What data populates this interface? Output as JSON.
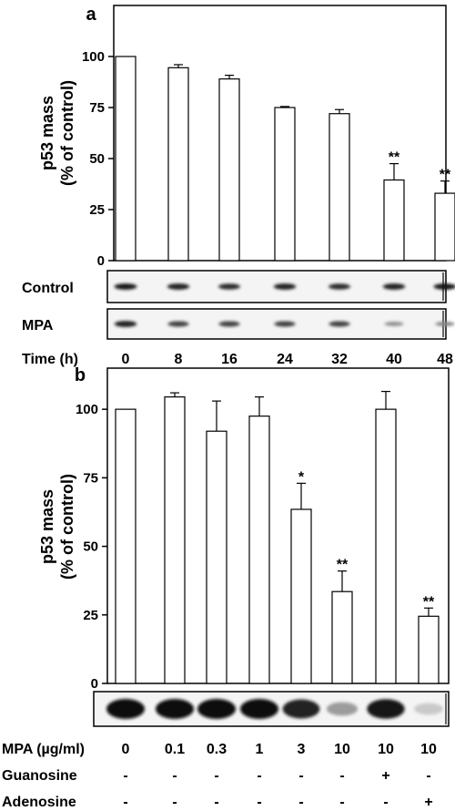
{
  "chart_data": [
    {
      "type": "bar",
      "panel_label": "a",
      "ylabel_line1": "p53 mass",
      "ylabel_line2": "(% of control)",
      "ylim": [
        0,
        125
      ],
      "yticks": [
        0,
        25,
        50,
        75,
        100
      ],
      "categories": [
        "0",
        "8",
        "16",
        "24",
        "32",
        "40",
        "48"
      ],
      "values": [
        100,
        94.5,
        89,
        75,
        72,
        39.5,
        33
      ],
      "errors": [
        0,
        1.5,
        1.8,
        0.5,
        2,
        8,
        6
      ],
      "significance": [
        "",
        "",
        "",
        "",
        "",
        "**",
        "**"
      ],
      "blot_rows": [
        {
          "label": "Control",
          "intensity": [
            0.95,
            0.9,
            0.85,
            0.9,
            0.85,
            0.9,
            0.95
          ]
        },
        {
          "label": "MPA",
          "intensity": [
            0.9,
            0.75,
            0.75,
            0.75,
            0.75,
            0.4,
            0.45
          ]
        }
      ],
      "xlabel": "Time (h)"
    },
    {
      "type": "bar",
      "panel_label": "b",
      "ylabel_line1": "p53 mass",
      "ylabel_line2": "(% of control)",
      "ylim": [
        0,
        115
      ],
      "yticks": [
        0,
        25,
        50,
        75,
        100
      ],
      "categories": [
        "0",
        "0.1",
        "0.3",
        "1",
        "3",
        "10",
        "10",
        "10"
      ],
      "values": [
        100,
        104.5,
        92,
        97.5,
        63.5,
        33.5,
        100,
        24.5
      ],
      "errors": [
        0,
        1.5,
        11,
        7,
        9.5,
        7.5,
        6.5,
        3
      ],
      "significance": [
        "",
        "",
        "",
        "",
        "*",
        "**",
        "",
        "**"
      ],
      "blot_rows": [
        {
          "label": "",
          "intensity": [
            1.0,
            1.0,
            1.0,
            1.0,
            0.9,
            0.35,
            0.95,
            0.15
          ]
        }
      ],
      "xlabel": "MPA (µg/ml)",
      "treatment_rows": [
        {
          "label": "Guanosine",
          "marks": [
            "-",
            "-",
            "-",
            "-",
            "-",
            "-",
            "+",
            "-"
          ]
        },
        {
          "label": "Adenosine",
          "marks": [
            "-",
            "-",
            "-",
            "-",
            "-",
            "-",
            "-",
            "+"
          ]
        }
      ]
    }
  ]
}
